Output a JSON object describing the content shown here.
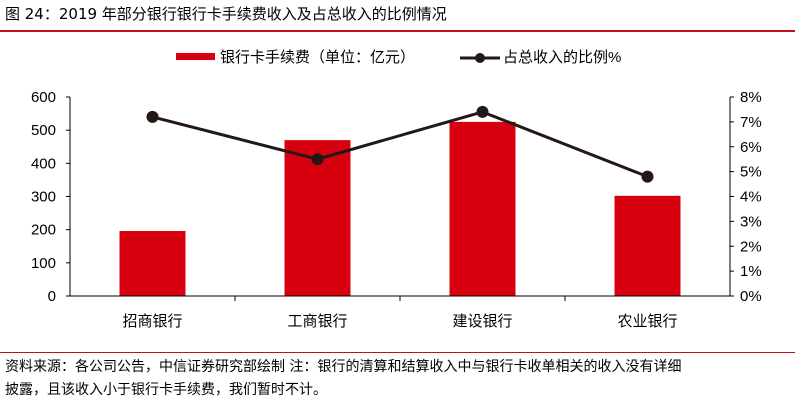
{
  "figure": {
    "title": "图 24：2019 年部分银行银行卡手续费收入及占总收入的比例情况",
    "source_line1": "资料来源：各公司公告，中信证券研究部绘制   注：银行的清算和结算收入中与银行卡收单相关的收入没有详细",
    "source_line2": "披露，且该收入小于银行卡手续费，我们暂时不计。",
    "accent_color": "#c0101a"
  },
  "chart_data": {
    "type": "bar",
    "title": "2019 年部分银行银行卡手续费收入及占总收入的比例情况",
    "categories": [
      "招商银行",
      "工商银行",
      "建设银行",
      "农业银行"
    ],
    "series": [
      {
        "name": "银行卡手续费（单位：亿元）",
        "type": "bar",
        "axis": "left",
        "color": "#d7000f",
        "values": [
          196,
          470,
          525,
          302
        ]
      },
      {
        "name": "占总收入的比例%",
        "type": "line",
        "axis": "right",
        "color": "#231815",
        "values": [
          7.2,
          5.5,
          7.4,
          4.8
        ]
      }
    ],
    "left_axis": {
      "ylim": [
        0,
        600
      ],
      "ticks": [
        "0",
        "100",
        "200",
        "300",
        "400",
        "500",
        "600"
      ]
    },
    "right_axis": {
      "ylim": [
        0,
        8
      ],
      "ticks": [
        "0%",
        "1%",
        "2%",
        "3%",
        "4%",
        "5%",
        "6%",
        "7%",
        "8%"
      ]
    },
    "xlabel": "",
    "ylabel": "",
    "grid": false,
    "legend_position": "top"
  }
}
